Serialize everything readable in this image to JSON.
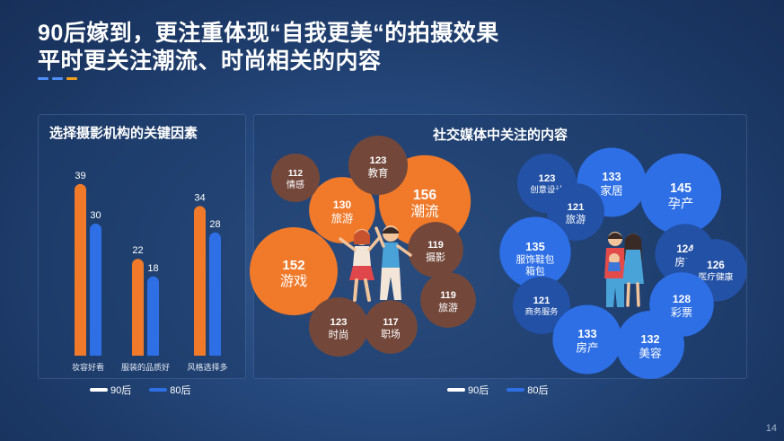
{
  "title": {
    "line1": "90后嫁到，更注重体现“自我更美“的拍摄效果",
    "line2": "平时更关注潮流、时尚相关的内容"
  },
  "colors": {
    "orange": "#f07a2a",
    "blue": "#2e6fe6",
    "brown": "#73483b",
    "navy": "#2351a6",
    "white": "#ffffff",
    "deco": [
      "#4d8ff5",
      "#4d8ff5",
      "#f0a020"
    ]
  },
  "page_number": "14",
  "legend": [
    {
      "label": "90后",
      "color": "#ffffff"
    },
    {
      "label": "80后",
      "color": "#2e6fe6"
    }
  ],
  "chart_data": [
    {
      "type": "bar",
      "title": "选择摄影机构的关键因素",
      "categories": [
        "妆容好看",
        "服装的品质好",
        "风格选择多"
      ],
      "series": [
        {
          "name": "90后",
          "values": [
            39,
            22,
            34
          ],
          "color": "#f07a2a"
        },
        {
          "name": "80后",
          "values": [
            30,
            18,
            28
          ],
          "color": "#2e6fe6"
        }
      ],
      "ylim": [
        0,
        40
      ],
      "grid": false
    },
    {
      "type": "bubble",
      "title": "社交媒体中关注的内容",
      "groups": [
        {
          "name": "90后",
          "bubbles": [
            {
              "label": "游戏",
              "value": 152,
              "color": "#f07a2a"
            },
            {
              "label": "潮流",
              "value": 156,
              "color": "#f07a2a"
            },
            {
              "label": "旅游",
              "value": 130,
              "color": "#f07a2a"
            },
            {
              "label": "情感",
              "value": 112,
              "color": "#73483b"
            },
            {
              "label": "教育",
              "value": 123,
              "color": "#73483b"
            },
            {
              "label": "摄影",
              "value": 119,
              "color": "#73483b"
            },
            {
              "label": "旅游",
              "value": 119,
              "color": "#73483b"
            },
            {
              "label": "时尚",
              "value": 123,
              "color": "#73483b"
            },
            {
              "label": "职场",
              "value": 117,
              "color": "#73483b"
            }
          ]
        },
        {
          "name": "80后",
          "bubbles": [
            {
              "label": "孕产",
              "value": 145,
              "color": "#2e6fe6"
            },
            {
              "label": "家居",
              "value": 133,
              "color": "#2e6fe6"
            },
            {
              "label": "创意设计",
              "value": 123,
              "color": "#2351a6"
            },
            {
              "label": "旅游",
              "value": 121,
              "color": "#2351a6"
            },
            {
              "label": "服饰鞋包箱包",
              "value": 135,
              "color": "#2e6fe6"
            },
            {
              "label": "房产",
              "value": 124,
              "color": "#2351a6"
            },
            {
              "label": "医疗健康",
              "value": 126,
              "color": "#2351a6"
            },
            {
              "label": "商务服务",
              "value": 121,
              "color": "#2351a6"
            },
            {
              "label": "彩票",
              "value": 128,
              "color": "#2e6fe6"
            },
            {
              "label": "房产",
              "value": 133,
              "color": "#2e6fe6"
            },
            {
              "label": "美容",
              "value": 132,
              "color": "#2e6fe6"
            }
          ]
        }
      ]
    }
  ]
}
